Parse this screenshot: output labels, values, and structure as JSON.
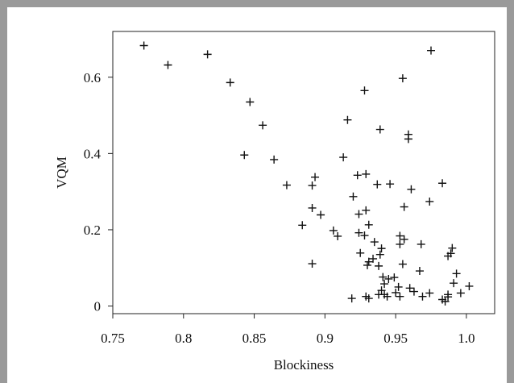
{
  "chart_data": {
    "type": "scatter",
    "xlabel": "Blockiness",
    "ylabel": "VQM",
    "xlim": [
      0.75,
      1.02
    ],
    "ylim": [
      -0.02,
      0.72
    ],
    "xticks": [
      0.75,
      0.8,
      0.85,
      0.9,
      0.95,
      1.0
    ],
    "xtick_labels": [
      "0.75",
      "0.8",
      "0.85",
      "0.9",
      "0.95",
      "1.0"
    ],
    "yticks": [
      0,
      0.2,
      0.4,
      0.6
    ],
    "ytick_labels": [
      "0",
      "0.2",
      "0.4",
      "0.6"
    ],
    "marker": "+",
    "grid": false,
    "points": [
      [
        0.772,
        0.683
      ],
      [
        0.789,
        0.632
      ],
      [
        0.817,
        0.66
      ],
      [
        0.833,
        0.586
      ],
      [
        0.847,
        0.535
      ],
      [
        0.856,
        0.474
      ],
      [
        0.843,
        0.396
      ],
      [
        0.864,
        0.384
      ],
      [
        0.873,
        0.317
      ],
      [
        0.893,
        0.338
      ],
      [
        0.891,
        0.316
      ],
      [
        0.891,
        0.257
      ],
      [
        0.897,
        0.239
      ],
      [
        0.884,
        0.212
      ],
      [
        0.906,
        0.198
      ],
      [
        0.909,
        0.183
      ],
      [
        0.891,
        0.111
      ],
      [
        0.913,
        0.39
      ],
      [
        0.916,
        0.488
      ],
      [
        0.928,
        0.565
      ],
      [
        0.939,
        0.463
      ],
      [
        0.955,
        0.597
      ],
      [
        0.959,
        0.45
      ],
      [
        0.959,
        0.438
      ],
      [
        0.975,
        0.67
      ],
      [
        0.983,
        0.322
      ],
      [
        0.974,
        0.274
      ],
      [
        0.961,
        0.306
      ],
      [
        0.956,
        0.26
      ],
      [
        0.946,
        0.32
      ],
      [
        0.937,
        0.319
      ],
      [
        0.929,
        0.346
      ],
      [
        0.923,
        0.343
      ],
      [
        0.92,
        0.287
      ],
      [
        0.924,
        0.241
      ],
      [
        0.929,
        0.251
      ],
      [
        0.931,
        0.213
      ],
      [
        0.924,
        0.192
      ],
      [
        0.928,
        0.185
      ],
      [
        0.935,
        0.168
      ],
      [
        0.94,
        0.151
      ],
      [
        0.939,
        0.135
      ],
      [
        0.925,
        0.139
      ],
      [
        0.931,
        0.116
      ],
      [
        0.93,
        0.107
      ],
      [
        0.934,
        0.124
      ],
      [
        0.938,
        0.105
      ],
      [
        0.953,
        0.184
      ],
      [
        0.956,
        0.175
      ],
      [
        0.953,
        0.162
      ],
      [
        0.955,
        0.11
      ],
      [
        0.941,
        0.076
      ],
      [
        0.945,
        0.071
      ],
      [
        0.942,
        0.058
      ],
      [
        0.949,
        0.075
      ],
      [
        0.952,
        0.05
      ],
      [
        0.94,
        0.041
      ],
      [
        0.938,
        0.03
      ],
      [
        0.942,
        0.03
      ],
      [
        0.944,
        0.025
      ],
      [
        0.95,
        0.035
      ],
      [
        0.953,
        0.025
      ],
      [
        0.96,
        0.047
      ],
      [
        0.963,
        0.038
      ],
      [
        0.967,
        0.092
      ],
      [
        0.968,
        0.162
      ],
      [
        0.969,
        0.025
      ],
      [
        0.974,
        0.034
      ],
      [
        0.929,
        0.025
      ],
      [
        0.931,
        0.02
      ],
      [
        0.919,
        0.02
      ],
      [
        0.983,
        0.017
      ],
      [
        0.985,
        0.012
      ],
      [
        0.987,
        0.024
      ],
      [
        0.987,
        0.03
      ],
      [
        0.987,
        0.131
      ],
      [
        0.989,
        0.138
      ],
      [
        0.99,
        0.152
      ],
      [
        0.991,
        0.06
      ],
      [
        0.993,
        0.085
      ],
      [
        0.996,
        0.034
      ],
      [
        1.002,
        0.052
      ]
    ]
  }
}
